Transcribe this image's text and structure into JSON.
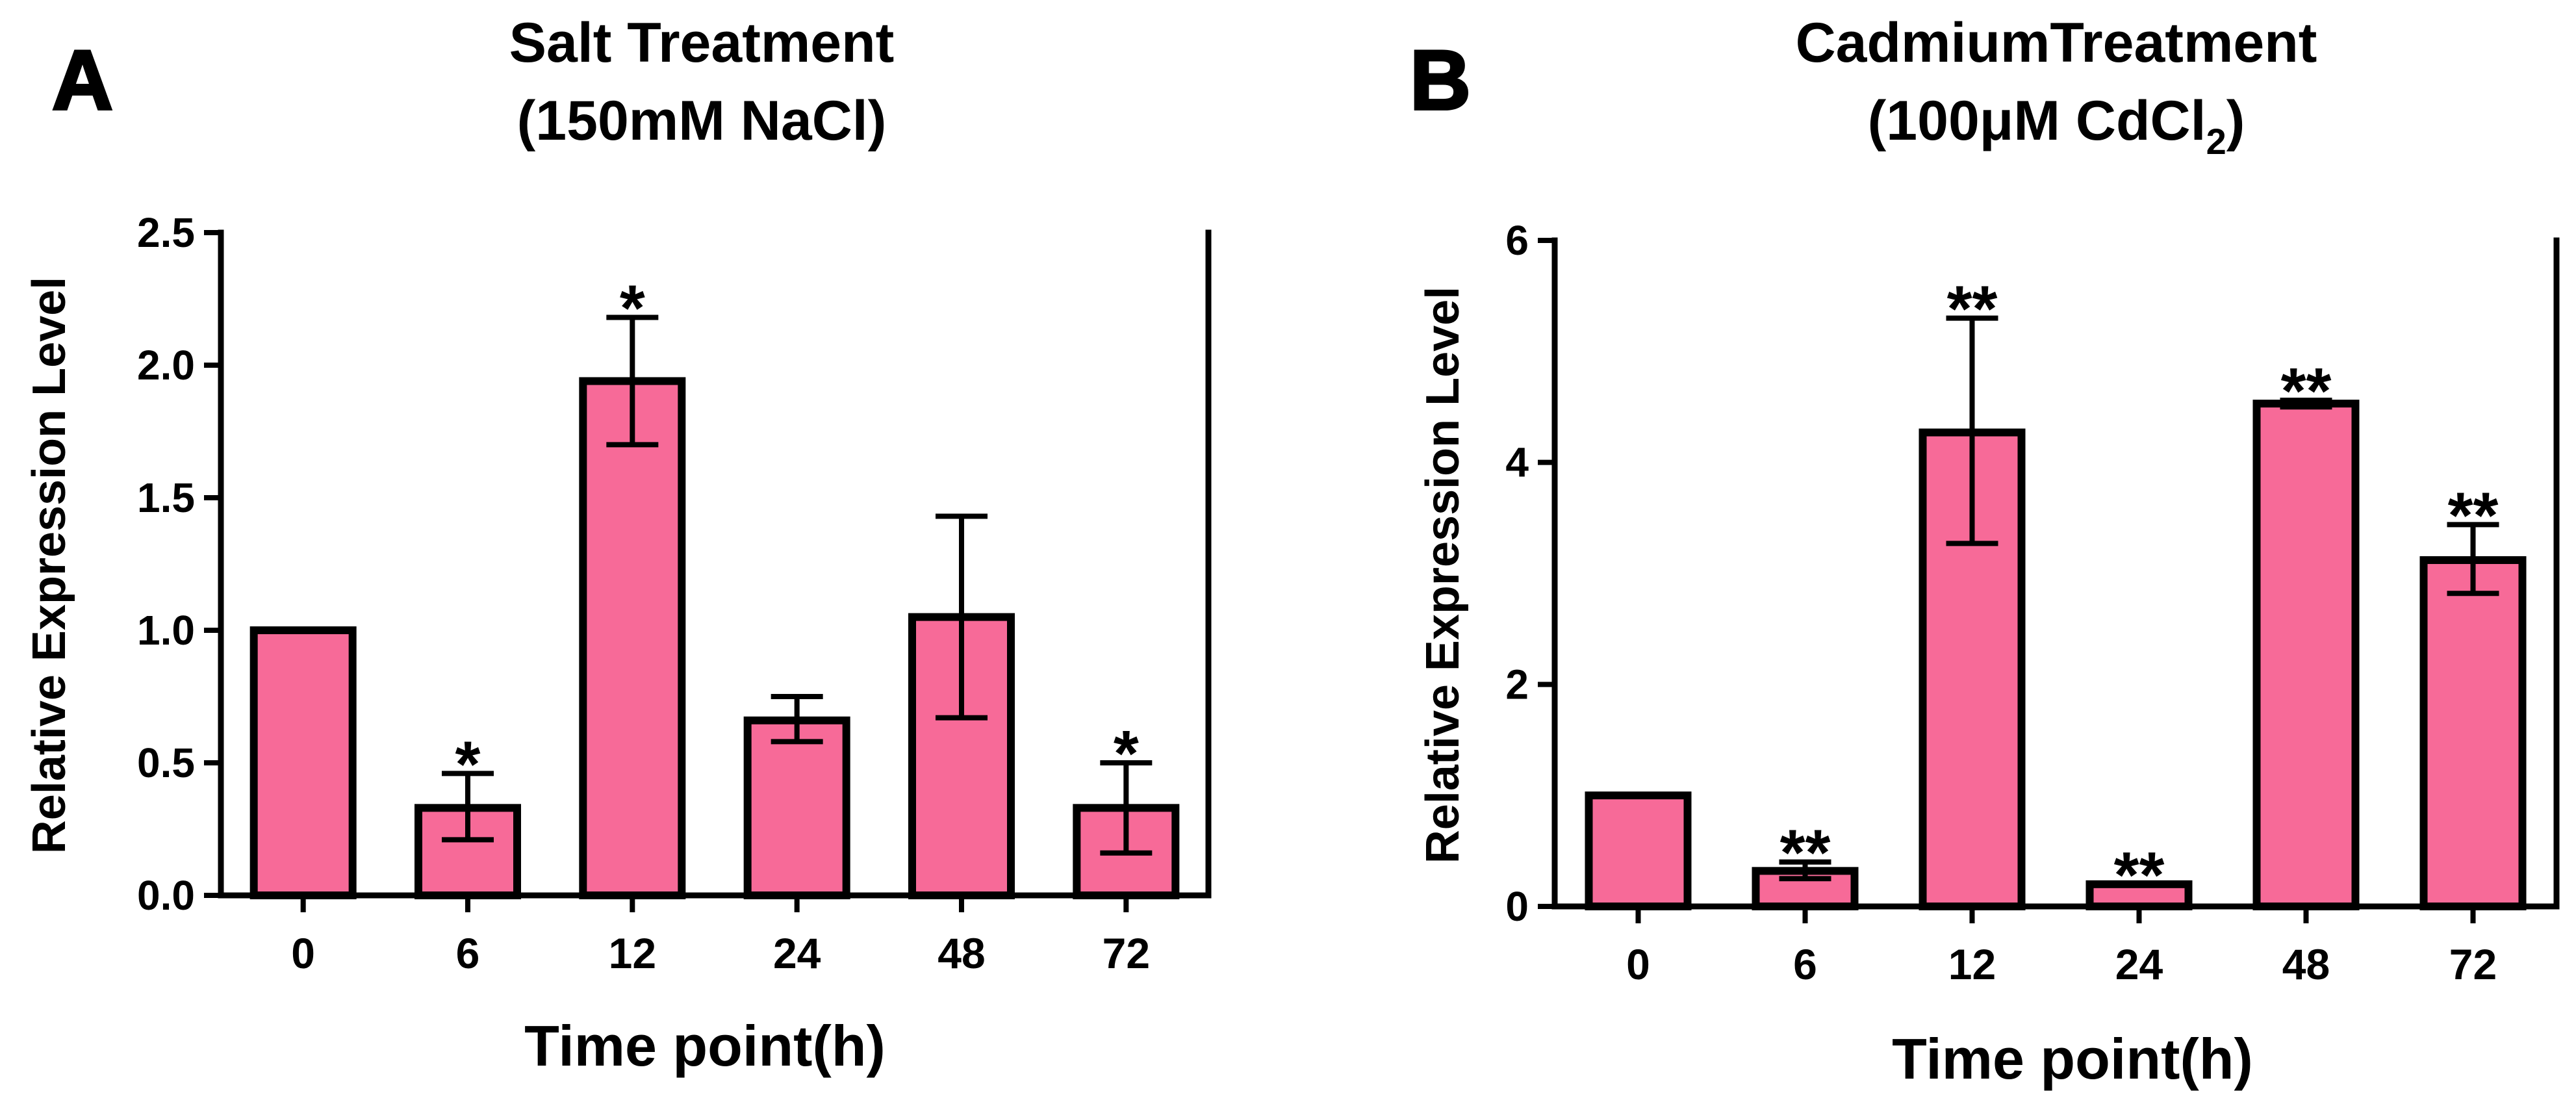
{
  "style": {
    "bar_color": "#F76A98",
    "stroke_color": "#000000"
  },
  "chart_data": [
    {
      "type": "bar",
      "panel_label": "A",
      "title_line1": "Salt Treatment",
      "title_line2": "(150mM NaCl)",
      "xlabel": "Time point(h)",
      "ylabel": "Relative Expression Level",
      "categories": [
        "0",
        "6",
        "12",
        "24",
        "48",
        "72"
      ],
      "values": [
        1.0,
        0.33,
        1.94,
        0.66,
        1.05,
        0.33
      ],
      "error_upper": [
        0.0,
        0.13,
        0.24,
        0.09,
        0.38,
        0.17
      ],
      "error_lower": [
        0.0,
        0.12,
        0.24,
        0.08,
        0.38,
        0.17
      ],
      "significance": [
        "",
        "*",
        "*",
        "",
        "",
        "*"
      ],
      "ylim": [
        0,
        2.5
      ],
      "yticks": [
        0.0,
        0.5,
        1.0,
        1.5,
        2.0,
        2.5
      ],
      "ytick_labels": [
        "0.0",
        "0.5",
        "1.0",
        "1.5",
        "2.0",
        "2.5"
      ]
    },
    {
      "type": "bar",
      "panel_label": "B",
      "title_line1": "CadmiumTreatment",
      "title_line2_prefix": "(100μM CdCl",
      "title_line2_sub": "2",
      "title_line2_suffix": ")",
      "xlabel": "Time point(h)",
      "ylabel": "Relative Expression Level",
      "categories": [
        "0",
        "6",
        "12",
        "24",
        "48",
        "72"
      ],
      "values": [
        1.0,
        0.32,
        4.27,
        0.2,
        4.53,
        3.12
      ],
      "error_upper": [
        0.0,
        0.08,
        1.03,
        0.0,
        0.03,
        0.32
      ],
      "error_lower": [
        0.0,
        0.07,
        1.0,
        0.0,
        0.03,
        0.3
      ],
      "significance": [
        "",
        "**",
        "**",
        "**",
        "**",
        "**"
      ],
      "ylim": [
        0,
        6
      ],
      "yticks": [
        0,
        2,
        4,
        6
      ],
      "ytick_labels": [
        "0",
        "2",
        "4",
        "6"
      ]
    }
  ]
}
